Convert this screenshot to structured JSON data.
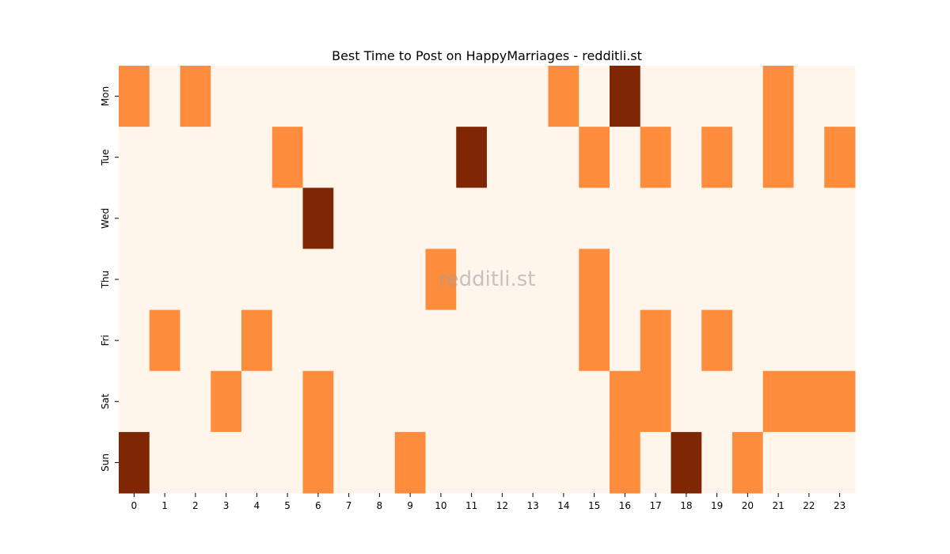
{
  "chart_data": {
    "type": "heatmap",
    "title": "Best Time to Post on HappyMarriages - redditli.st",
    "xlabel": "",
    "ylabel": "",
    "x": [
      "0",
      "1",
      "2",
      "3",
      "4",
      "5",
      "6",
      "7",
      "8",
      "9",
      "10",
      "11",
      "12",
      "13",
      "14",
      "15",
      "16",
      "17",
      "18",
      "19",
      "20",
      "21",
      "22",
      "23"
    ],
    "y": [
      "Mon",
      "Tue",
      "Wed",
      "Thu",
      "Fri",
      "Sat",
      "Sun"
    ],
    "values": [
      [
        1,
        0,
        1,
        0,
        0,
        0,
        0,
        0,
        0,
        0,
        0,
        0,
        0,
        0,
        1,
        0,
        2,
        0,
        0,
        0,
        0,
        1,
        0,
        0
      ],
      [
        0,
        0,
        0,
        0,
        0,
        1,
        0,
        0,
        0,
        0,
        0,
        2,
        0,
        0,
        0,
        1,
        0,
        1,
        0,
        1,
        0,
        1,
        0,
        1
      ],
      [
        0,
        0,
        0,
        0,
        0,
        0,
        2,
        0,
        0,
        0,
        0,
        0,
        0,
        0,
        0,
        0,
        0,
        0,
        0,
        0,
        0,
        0,
        0,
        0
      ],
      [
        0,
        0,
        0,
        0,
        0,
        0,
        0,
        0,
        0,
        0,
        1,
        0,
        0,
        0,
        0,
        1,
        0,
        0,
        0,
        0,
        0,
        0,
        0,
        0
      ],
      [
        0,
        1,
        0,
        0,
        1,
        0,
        0,
        0,
        0,
        0,
        0,
        0,
        0,
        0,
        0,
        1,
        0,
        1,
        0,
        1,
        0,
        0,
        0,
        0
      ],
      [
        0,
        0,
        0,
        1,
        0,
        0,
        1,
        0,
        0,
        0,
        0,
        0,
        0,
        0,
        0,
        0,
        1,
        1,
        0,
        0,
        0,
        1,
        1,
        1
      ],
      [
        2,
        0,
        0,
        0,
        0,
        0,
        1,
        0,
        0,
        1,
        0,
        0,
        0,
        0,
        0,
        0,
        1,
        0,
        2,
        0,
        1,
        0,
        0,
        0
      ]
    ],
    "colormap": "Oranges",
    "color_levels": {
      "0": "#fff5eb",
      "1": "#fd8d3c",
      "2": "#7f2704"
    },
    "legend": "none",
    "grid": false
  },
  "watermark": "redditli.st"
}
